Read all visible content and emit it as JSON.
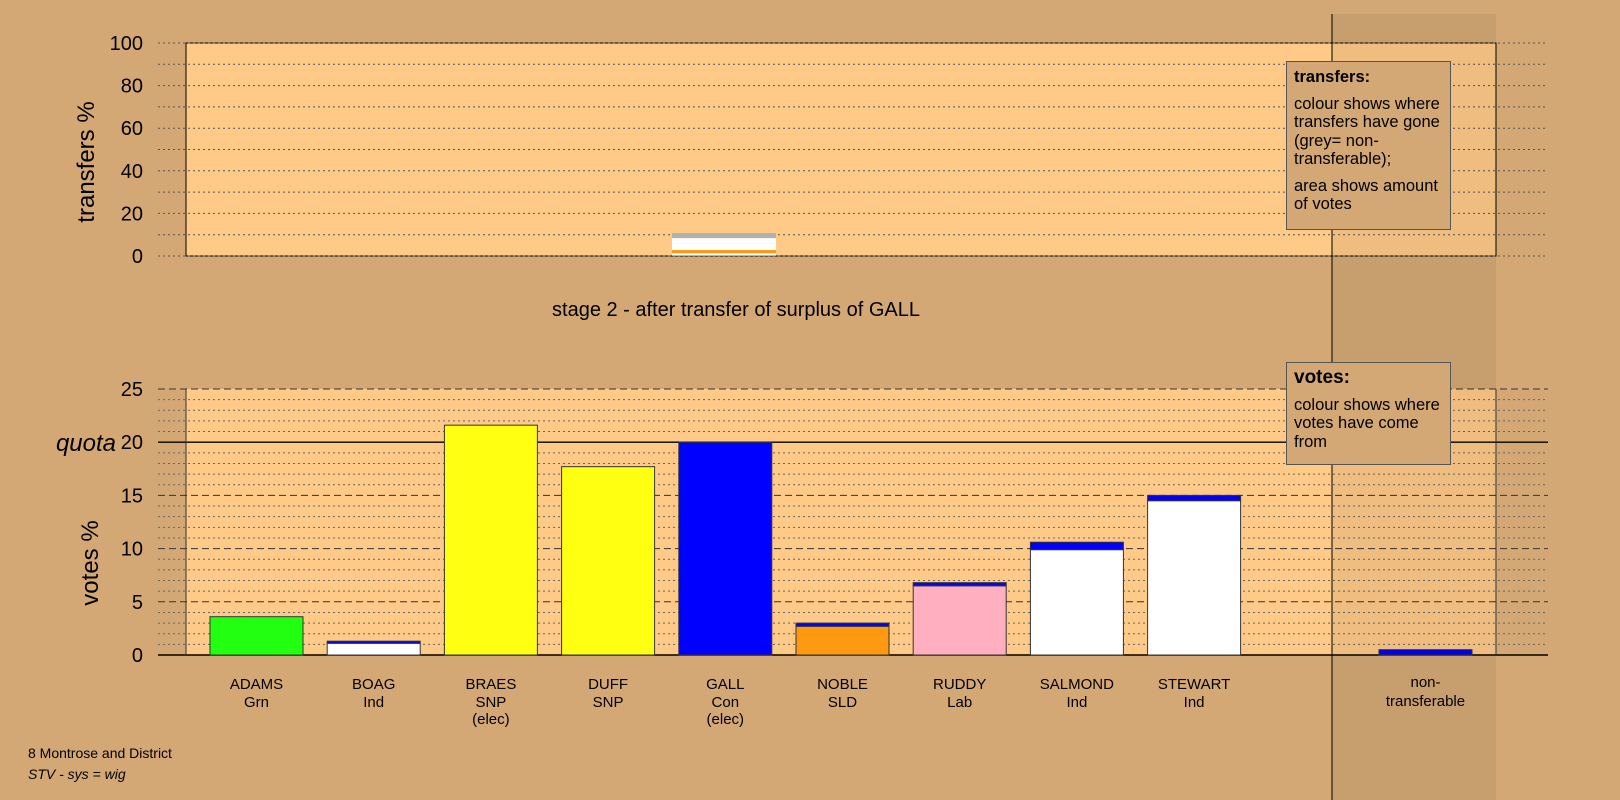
{
  "stage_title": "stage 2 - after transfer of surplus of GALL",
  "footer": {
    "line1": "8 Montrose and District",
    "line2": "STV - sys = wig"
  },
  "transfers_legend": {
    "title": "transfers:",
    "p1": "colour shows where transfers have gone (grey= non-transferable);",
    "p2": "area shows amount of votes"
  },
  "votes_legend": {
    "title": "votes:",
    "p1": "colour shows where votes have come from"
  },
  "colors": {
    "background": "#d4a874",
    "plot_area": "#ffc988",
    "Grn": "#22ff11",
    "Ind": "#ffffff",
    "SNP": "#ffff11",
    "Con": "#0000ff",
    "SLD": "#ff9911",
    "Lab": "#ffafbf",
    "non_transferable": "#b0b0b0"
  },
  "chart_data": [
    {
      "type": "bar",
      "ylabel": "transfers %",
      "ylim": [
        0,
        100
      ],
      "yticks": [
        0,
        20,
        40,
        60,
        80,
        100
      ],
      "grid": true,
      "transfer_from": "GALL",
      "transfer_segments": [
        {
          "to": "ADAMS",
          "value": 0.4,
          "color": "#22ff11"
        },
        {
          "to": "BOAG",
          "value": 0.9,
          "color": "#ffffff"
        },
        {
          "to": "NOBLE",
          "value": 1.5,
          "color": "#ff9911"
        },
        {
          "to": "RUDDY",
          "value": 0.0,
          "color": "#ffafbf"
        },
        {
          "to": "SALMOND",
          "value": 3.0,
          "color": "#ffffff"
        },
        {
          "to": "STEWART",
          "value": 2.6,
          "color": "#ffffff"
        },
        {
          "to": "non-transferable",
          "value": 2.4,
          "color": "#b0b0b0"
        }
      ]
    },
    {
      "type": "bar",
      "ylabel": "votes %",
      "ylim": [
        0,
        25
      ],
      "yticks": [
        0,
        5,
        10,
        15,
        20,
        25
      ],
      "quota": 20,
      "quota_label": "quota",
      "grid": true,
      "candidates": [
        {
          "name": "ADAMS",
          "party": "Grn",
          "elected": "",
          "base": 3.6,
          "transfer": 0.0,
          "color": "#22ff11"
        },
        {
          "name": "BOAG",
          "party": "Ind",
          "elected": "",
          "base": 1.1,
          "transfer": 0.2,
          "color": "#ffffff"
        },
        {
          "name": "BRAES",
          "party": "SNP",
          "elected": "(elec)",
          "base": 21.6,
          "transfer": 0.0,
          "color": "#ffff11"
        },
        {
          "name": "DUFF",
          "party": "SNP",
          "elected": "",
          "base": 17.7,
          "transfer": 0.0,
          "color": "#ffff11"
        },
        {
          "name": "GALL",
          "party": "Con",
          "elected": "(elec)",
          "base": 20.0,
          "transfer": 0.0,
          "color": "#0000ff"
        },
        {
          "name": "NOBLE",
          "party": "SLD",
          "elected": "",
          "base": 2.7,
          "transfer": 0.3,
          "color": "#ff9911"
        },
        {
          "name": "RUDDY",
          "party": "Lab",
          "elected": "",
          "base": 6.5,
          "transfer": 0.3,
          "color": "#ffafbf"
        },
        {
          "name": "SALMOND",
          "party": "Ind",
          "elected": "",
          "base": 9.9,
          "transfer": 0.7,
          "color": "#ffffff"
        },
        {
          "name": "STEWART",
          "party": "Ind",
          "elected": "",
          "base": 14.5,
          "transfer": 0.5,
          "color": "#ffffff"
        }
      ],
      "non_transferable": {
        "label1": "non-",
        "label2": "transferable",
        "value": 0.5,
        "color": "#0000ff"
      }
    }
  ]
}
